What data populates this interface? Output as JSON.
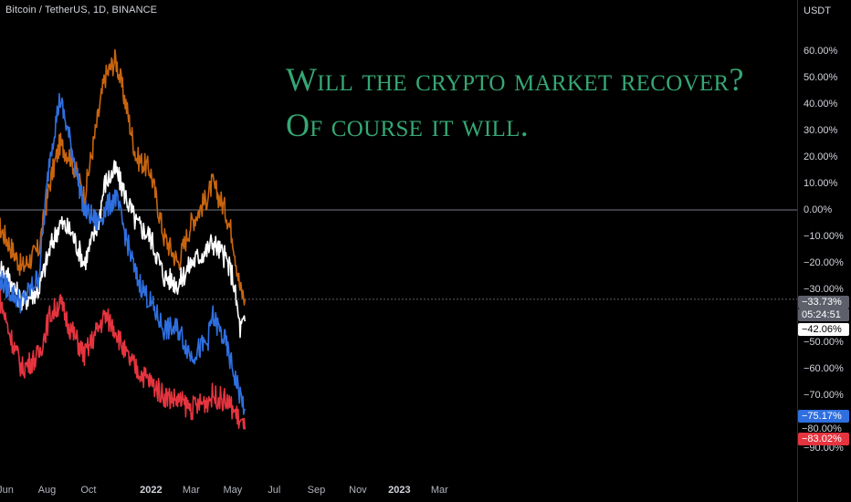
{
  "symbol": "Bitcoin / TetherUS, 1D, BINANCE",
  "currency": "USDT",
  "overlay_lines": [
    "Will the crypto market recover?",
    "Of course it will."
  ],
  "y_ticks": [
    "60.00%",
    "50.00%",
    "40.00%",
    "30.00%",
    "20.00%",
    "10.00%",
    "0.00%",
    "−10.00%",
    "−20.00%",
    "−30.00%",
    "−50.00%",
    "−60.00%",
    "−70.00%",
    "−90.00%"
  ],
  "x_ticks": [
    {
      "label": "Jun",
      "year": false
    },
    {
      "label": "Aug",
      "year": false
    },
    {
      "label": "Oct",
      "year": false
    },
    {
      "label": "2022",
      "year": true
    },
    {
      "label": "Mar",
      "year": false
    },
    {
      "label": "May",
      "year": false
    },
    {
      "label": "Jul",
      "year": false
    },
    {
      "label": "Sep",
      "year": false
    },
    {
      "label": "Nov",
      "year": false
    },
    {
      "label": "2023",
      "year": true
    },
    {
      "label": "Mar",
      "year": false
    }
  ],
  "price_tags": {
    "orange": "−33.73%",
    "countdown": "05:24:51",
    "white": "−42.06%",
    "blue": "−75.17%",
    "partial": "−80.00%",
    "red": "−83.02%"
  },
  "colors": {
    "orange": "#c9650f",
    "white": "#ffffff",
    "blue": "#2f6fe0",
    "red": "#e6343f",
    "grey_tag": "#5d606b",
    "title": "#36a774"
  },
  "chart_data": {
    "type": "line",
    "unit": "percent change",
    "ylim": [
      -95,
      65
    ],
    "zero_line": 0,
    "series": [
      {
        "key": "orange",
        "points": [
          [
            "2021-05-20",
            -5
          ],
          [
            "2021-06-05",
            -12
          ],
          [
            "2021-06-25",
            -22
          ],
          [
            "2021-07-20",
            -15
          ],
          [
            "2021-08-05",
            10
          ],
          [
            "2021-08-20",
            25
          ],
          [
            "2021-09-05",
            20
          ],
          [
            "2021-09-25",
            5
          ],
          [
            "2021-10-15",
            35
          ],
          [
            "2021-10-25",
            50
          ],
          [
            "2021-11-10",
            57
          ],
          [
            "2021-11-25",
            40
          ],
          [
            "2021-12-10",
            20
          ],
          [
            "2021-12-31",
            15
          ],
          [
            "2022-01-20",
            -10
          ],
          [
            "2022-02-10",
            -20
          ],
          [
            "2022-03-01",
            -5
          ],
          [
            "2022-03-25",
            5
          ],
          [
            "2022-04-01",
            10
          ],
          [
            "2022-04-20",
            0
          ],
          [
            "2022-05-01",
            -10
          ],
          [
            "2022-05-12",
            -30
          ],
          [
            "2022-05-19",
            -33.7
          ]
        ]
      },
      {
        "key": "white",
        "points": [
          [
            "2021-05-20",
            -20
          ],
          [
            "2021-06-05",
            -25
          ],
          [
            "2021-06-25",
            -35
          ],
          [
            "2021-07-20",
            -30
          ],
          [
            "2021-08-05",
            -15
          ],
          [
            "2021-08-20",
            -5
          ],
          [
            "2021-09-05",
            -8
          ],
          [
            "2021-09-25",
            -20
          ],
          [
            "2021-10-15",
            -5
          ],
          [
            "2021-10-25",
            10
          ],
          [
            "2021-11-10",
            15
          ],
          [
            "2021-11-25",
            5
          ],
          [
            "2021-12-10",
            -5
          ],
          [
            "2021-12-31",
            -10
          ],
          [
            "2022-01-20",
            -25
          ],
          [
            "2022-02-10",
            -28
          ],
          [
            "2022-03-01",
            -20
          ],
          [
            "2022-03-25",
            -15
          ],
          [
            "2022-04-01",
            -12
          ],
          [
            "2022-04-20",
            -18
          ],
          [
            "2022-05-01",
            -25
          ],
          [
            "2022-05-12",
            -45
          ],
          [
            "2022-05-19",
            -42.1
          ]
        ]
      },
      {
        "key": "blue",
        "points": [
          [
            "2021-05-20",
            -25
          ],
          [
            "2021-06-05",
            -30
          ],
          [
            "2021-06-25",
            -35
          ],
          [
            "2021-07-20",
            -25
          ],
          [
            "2021-08-05",
            20
          ],
          [
            "2021-08-20",
            42
          ],
          [
            "2021-09-05",
            25
          ],
          [
            "2021-09-25",
            0
          ],
          [
            "2021-10-15",
            -5
          ],
          [
            "2021-10-25",
            0
          ],
          [
            "2021-11-10",
            5
          ],
          [
            "2021-11-25",
            -10
          ],
          [
            "2021-12-10",
            -25
          ],
          [
            "2021-12-31",
            -35
          ],
          [
            "2022-01-20",
            -45
          ],
          [
            "2022-02-10",
            -45
          ],
          [
            "2022-03-01",
            -55
          ],
          [
            "2022-03-25",
            -50
          ],
          [
            "2022-04-01",
            -40
          ],
          [
            "2022-04-20",
            -50
          ],
          [
            "2022-05-01",
            -60
          ],
          [
            "2022-05-12",
            -70
          ],
          [
            "2022-05-19",
            -75.2
          ]
        ]
      },
      {
        "key": "red",
        "points": [
          [
            "2021-05-20",
            -30
          ],
          [
            "2021-06-05",
            -45
          ],
          [
            "2021-06-25",
            -60
          ],
          [
            "2021-07-20",
            -55
          ],
          [
            "2021-08-05",
            -40
          ],
          [
            "2021-08-20",
            -35
          ],
          [
            "2021-09-05",
            -45
          ],
          [
            "2021-09-25",
            -55
          ],
          [
            "2021-10-15",
            -45
          ],
          [
            "2021-10-25",
            -40
          ],
          [
            "2021-11-10",
            -45
          ],
          [
            "2021-11-25",
            -55
          ],
          [
            "2021-12-10",
            -60
          ],
          [
            "2021-12-31",
            -65
          ],
          [
            "2022-01-20",
            -70
          ],
          [
            "2022-02-10",
            -72
          ],
          [
            "2022-03-01",
            -75
          ],
          [
            "2022-03-25",
            -72
          ],
          [
            "2022-04-01",
            -70
          ],
          [
            "2022-04-20",
            -72
          ],
          [
            "2022-05-01",
            -75
          ],
          [
            "2022-05-12",
            -80
          ],
          [
            "2022-05-19",
            -83.0
          ]
        ]
      }
    ]
  }
}
